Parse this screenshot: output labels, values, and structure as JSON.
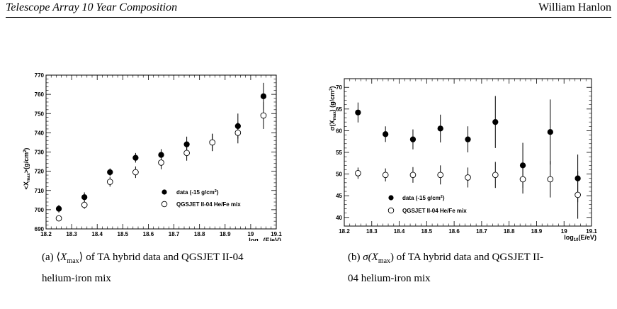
{
  "header": {
    "title": "Telescope Array 10 Year Composition",
    "author": "William Hanlon"
  },
  "chart_data": [
    {
      "type": "scatter",
      "ylabel": "<X_max> (g/cm²)",
      "xlabel": "log10(E/eV)",
      "xlim": [
        18.2,
        19.1
      ],
      "ylim": [
        690,
        770
      ],
      "x_ticks": [
        18.2,
        18.3,
        18.4,
        18.5,
        18.6,
        18.7,
        18.8,
        18.9,
        19,
        19.1
      ],
      "y_ticks": [
        690,
        700,
        710,
        720,
        730,
        740,
        750,
        760,
        770
      ],
      "legend_position": "bottom-right",
      "series": [
        {
          "name": "data (-15 g/cm²)",
          "marker": "filled-circle",
          "x": [
            18.25,
            18.35,
            18.45,
            18.55,
            18.65,
            18.75,
            18.85,
            18.95,
            19.05
          ],
          "y": [
            700.5,
            706.5,
            719.5,
            727,
            728.5,
            734,
            735,
            743.5,
            759
          ],
          "err": [
            2,
            2.5,
            2,
            2.5,
            3,
            4,
            4.5,
            6.5,
            7
          ]
        },
        {
          "name": "QGSJET II-04 He/Fe mix",
          "marker": "open-circle",
          "x": [
            18.25,
            18.35,
            18.45,
            18.55,
            18.65,
            18.75,
            18.85,
            18.95,
            19.05
          ],
          "y": [
            695.5,
            702.5,
            714.5,
            719.5,
            724.5,
            729.5,
            735,
            740,
            749
          ],
          "err": [
            1.5,
            2,
            2.5,
            3,
            3.5,
            4,
            4.5,
            5.5,
            7
          ]
        }
      ]
    },
    {
      "type": "scatter",
      "ylabel": "σ(X_max) (g/cm²)",
      "xlabel": "log10(E/eV)",
      "xlim": [
        18.2,
        19.1
      ],
      "ylim": [
        38,
        72
      ],
      "x_ticks": [
        18.2,
        18.3,
        18.4,
        18.5,
        18.6,
        18.7,
        18.8,
        18.9,
        19,
        19.1
      ],
      "y_ticks": [
        40,
        45,
        50,
        55,
        60,
        65,
        70
      ],
      "legend_position": "bottom-right",
      "series": [
        {
          "name": "data (-15 g/cm²)",
          "marker": "filled-circle",
          "x": [
            18.25,
            18.35,
            18.45,
            18.55,
            18.65,
            18.75,
            18.85,
            18.95,
            19.05
          ],
          "y": [
            64.2,
            59.2,
            58,
            60.5,
            58,
            62,
            52,
            59.7,
            49
          ],
          "err": [
            2.3,
            1.8,
            2.3,
            3.2,
            3,
            6,
            5.2,
            7.5,
            5.5
          ]
        },
        {
          "name": "QGSJET II-04 He/Fe mix",
          "marker": "open-circle",
          "x": [
            18.25,
            18.35,
            18.45,
            18.55,
            18.65,
            18.75,
            18.85,
            18.95,
            19.05
          ],
          "y": [
            50.2,
            49.8,
            49.8,
            49.8,
            49.2,
            49.8,
            48.8,
            48.8,
            45.2
          ],
          "err": [
            1.3,
            1.5,
            1.8,
            2.2,
            2.3,
            3,
            3.3,
            4.2,
            5.5
          ]
        }
      ]
    }
  ],
  "captions": [
    {
      "label": "(a)",
      "line1_pre": "⟨",
      "line1_sym": "X",
      "line1_sub": "max",
      "line1_post": "⟩ of TA hybrid data and QGSJET II-04",
      "line2": "helium-iron mix"
    },
    {
      "label": "(b)",
      "line1_pre": "σ(",
      "line1_sym": "X",
      "line1_sub": "max",
      "line1_post": ") of TA hybrid data and QGSJET II-",
      "line2": "04 helium-iron mix"
    }
  ],
  "axis_text": {
    "x_title_main": "log",
    "x_title_sub": "10",
    "x_title_rest": "(E/eV)",
    "a_y_title_pre": "<X",
    "a_y_title_sub": "max",
    "a_y_title_post": ">(g/cm",
    "b_y_title_pre": "σ(X",
    "b_y_title_sub": "max",
    "b_y_title_post": ") (g/cm",
    "unit_sup": "2",
    "unit_close": ")",
    "legend_data_pre": "data (-15 g/cm",
    "legend_model": "QGSJET II-04 He/Fe mix"
  }
}
